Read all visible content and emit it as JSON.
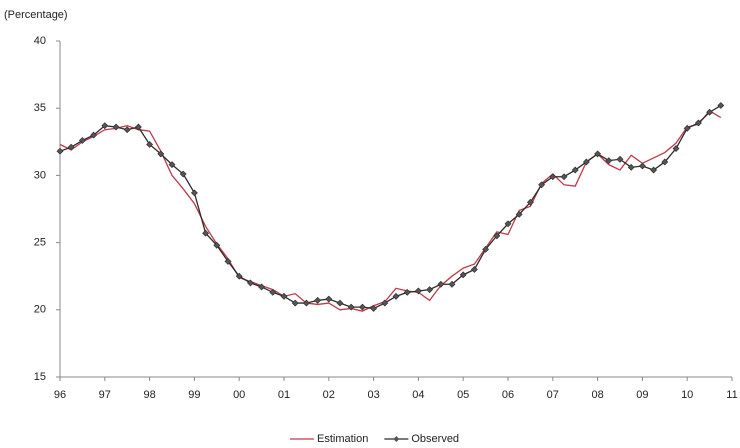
{
  "chart_data": {
    "type": "line",
    "y_label": "(Percentage)",
    "x": [
      1996,
      1996.25,
      1996.5,
      1996.75,
      1997,
      1997.25,
      1997.5,
      1997.75,
      1998,
      1998.25,
      1998.5,
      1998.75,
      1999,
      1999.25,
      1999.5,
      1999.75,
      2000,
      2000.25,
      2000.5,
      2000.75,
      2001,
      2001.25,
      2001.5,
      2001.75,
      2002,
      2002.25,
      2002.5,
      2002.75,
      2003,
      2003.25,
      2003.5,
      2003.75,
      2004,
      2004.25,
      2004.5,
      2004.75,
      2005,
      2005.25,
      2005.5,
      2005.75,
      2006,
      2006.25,
      2006.5,
      2006.75,
      2007,
      2007.25,
      2007.5,
      2007.75,
      2008,
      2008.25,
      2008.5,
      2008.75,
      2009,
      2009.25,
      2009.5,
      2009.75,
      2010,
      2010.25,
      2010.5,
      2010.75
    ],
    "series": [
      {
        "name": "Estimation",
        "color": "#c0394b",
        "marker": false,
        "values": [
          32.3,
          31.9,
          32.5,
          32.9,
          33.4,
          33.5,
          33.7,
          33.4,
          33.3,
          31.8,
          30.0,
          29.0,
          27.9,
          26.2,
          24.9,
          23.8,
          22.4,
          22.1,
          21.8,
          21.5,
          21.0,
          21.2,
          20.5,
          20.4,
          20.5,
          20.0,
          20.1,
          19.9,
          20.3,
          20.6,
          21.6,
          21.4,
          21.3,
          20.7,
          21.8,
          22.5,
          23.1,
          23.4,
          24.6,
          25.8,
          25.6,
          27.4,
          27.7,
          29.4,
          30.1,
          29.3,
          29.2,
          31.0,
          31.6,
          30.8,
          30.4,
          31.5,
          30.9,
          31.3,
          31.7,
          32.4,
          33.6,
          33.8,
          34.8,
          34.3
        ]
      },
      {
        "name": "Observed",
        "color": "#2b2b2b",
        "marker": true,
        "values": [
          31.8,
          32.1,
          32.6,
          33.0,
          33.7,
          33.6,
          33.4,
          33.6,
          32.3,
          31.6,
          30.8,
          30.1,
          28.7,
          25.7,
          24.8,
          23.6,
          22.5,
          22.0,
          21.7,
          21.3,
          21.0,
          20.5,
          20.5,
          20.7,
          20.8,
          20.5,
          20.2,
          20.2,
          20.1,
          20.5,
          21.0,
          21.3,
          21.4,
          21.5,
          21.9,
          21.9,
          22.6,
          23.0,
          24.5,
          25.5,
          26.4,
          27.1,
          28.0,
          29.3,
          29.9,
          29.9,
          30.4,
          31.0,
          31.6,
          31.1,
          31.2,
          30.6,
          30.7,
          30.4,
          31.0,
          32.0,
          33.5,
          33.9,
          34.7,
          35.2
        ]
      }
    ],
    "xlim": [
      1996,
      2011
    ],
    "xticks": [
      {
        "value": 1996,
        "label": "96"
      },
      {
        "value": 1997,
        "label": "97"
      },
      {
        "value": 1998,
        "label": "98"
      },
      {
        "value": 1999,
        "label": "99"
      },
      {
        "value": 2000,
        "label": "00"
      },
      {
        "value": 2001,
        "label": "01"
      },
      {
        "value": 2002,
        "label": "02"
      },
      {
        "value": 2003,
        "label": "03"
      },
      {
        "value": 2004,
        "label": "04"
      },
      {
        "value": 2005,
        "label": "05"
      },
      {
        "value": 2006,
        "label": "06"
      },
      {
        "value": 2007,
        "label": "07"
      },
      {
        "value": 2008,
        "label": "08"
      },
      {
        "value": 2009,
        "label": "09"
      },
      {
        "value": 2010,
        "label": "10"
      },
      {
        "value": 2011,
        "label": "11"
      }
    ],
    "ylim": [
      15,
      40
    ],
    "yticks": [
      15,
      20,
      25,
      30,
      35,
      40
    ],
    "grid": false,
    "legend": "bottom"
  }
}
